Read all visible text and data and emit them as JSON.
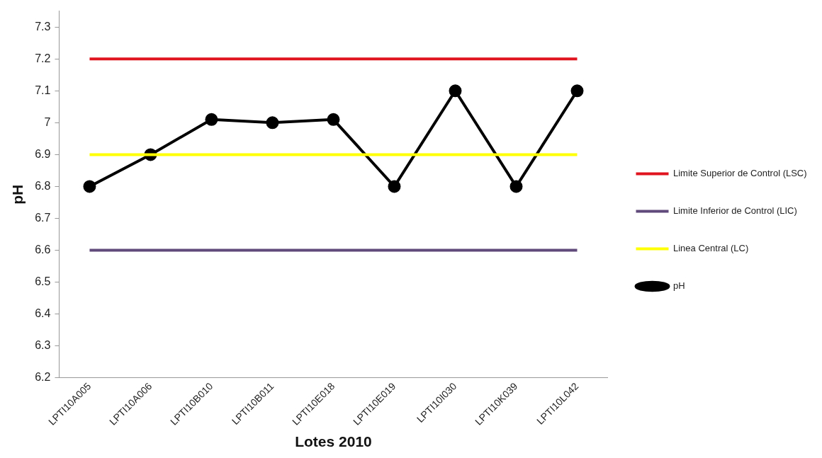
{
  "chart_data": {
    "type": "line",
    "xlabel": "Lotes 2010",
    "ylabel": "pH",
    "categories": [
      "LPTI10A005",
      "LPTI10A006",
      "LPTI10B010",
      "LPTI10B011",
      "LPTI10E018",
      "LPTI10E019",
      "LPTI10I030",
      "LPTI10K039",
      "LPTI10L042"
    ],
    "series": [
      {
        "name": "Limite Superior de Control (LSC)",
        "color": "#e0141e",
        "marker": "none",
        "values": [
          7.2,
          7.2,
          7.2,
          7.2,
          7.2,
          7.2,
          7.2,
          7.2,
          7.2
        ]
      },
      {
        "name": "Limite Inferior de Control (LIC)",
        "color": "#604a7b",
        "marker": "none",
        "values": [
          6.6,
          6.6,
          6.6,
          6.6,
          6.6,
          6.6,
          6.6,
          6.6,
          6.6
        ]
      },
      {
        "name": "Linea Central (LC)",
        "color": "#ffff00",
        "marker": "none",
        "values": [
          6.9,
          6.9,
          6.9,
          6.9,
          6.9,
          6.9,
          6.9,
          6.9,
          6.9
        ]
      },
      {
        "name": "pH",
        "color": "#000000",
        "marker": "circle",
        "values": [
          6.8,
          6.9,
          7.01,
          7.0,
          7.01,
          6.8,
          7.1,
          6.8,
          7.1
        ]
      }
    ],
    "ylim": [
      6.2,
      7.35
    ],
    "yticks": [
      6.2,
      6.3,
      6.4,
      6.5,
      6.6,
      6.7,
      6.8,
      6.9,
      7,
      7.1,
      7.2,
      7.3
    ],
    "grid": false,
    "legend": "right",
    "line_style": "solid"
  }
}
